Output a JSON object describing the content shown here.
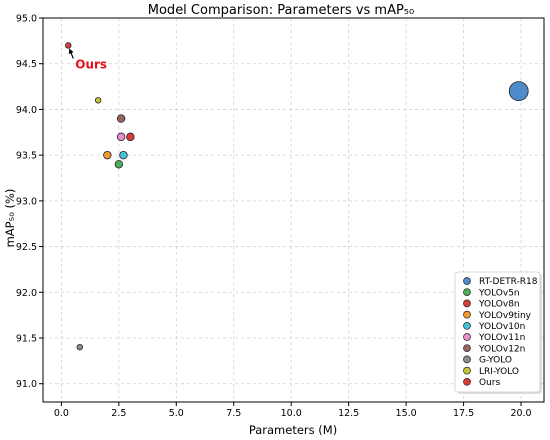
{
  "chart_data": {
    "type": "scatter",
    "title": "Model Comparison: Parameters vs mAP₅₀",
    "xlabel": "Parameters (M)",
    "ylabel": "mAP₅₀ (%)",
    "xlim": [
      -0.8,
      21.0
    ],
    "ylim": [
      90.8,
      95.0
    ],
    "xticks": [
      0.0,
      2.5,
      5.0,
      7.5,
      10.0,
      12.5,
      15.0,
      17.5,
      20.0
    ],
    "xtick_labels": [
      "0.0",
      "2.5",
      "5.0",
      "7.5",
      "10.0",
      "12.5",
      "15.0",
      "17.5",
      "20.0"
    ],
    "yticks": [
      91.0,
      91.5,
      92.0,
      92.5,
      93.0,
      93.5,
      94.0,
      94.5,
      95.0
    ],
    "ytick_labels": [
      "91.0",
      "91.5",
      "92.0",
      "92.5",
      "93.0",
      "93.5",
      "94.0",
      "94.5",
      "95.0"
    ],
    "grid": true,
    "legend_position": "lower-right",
    "series": [
      {
        "name": "RT-DETR-R18",
        "x": 19.9,
        "y": 94.2,
        "color": "#3b7fc4",
        "size": "large"
      },
      {
        "name": "YOLOv5n",
        "x": 2.5,
        "y": 93.4,
        "color": "#3aa547",
        "size": "small"
      },
      {
        "name": "YOLOv8n",
        "x": 3.0,
        "y": 93.7,
        "color": "#d62728",
        "size": "small"
      },
      {
        "name": "YOLOv9tiny",
        "x": 2.0,
        "y": 93.5,
        "color": "#f28e1c",
        "size": "small"
      },
      {
        "name": "YOLOv10n",
        "x": 2.7,
        "y": 93.5,
        "color": "#2fbfcf",
        "size": "small"
      },
      {
        "name": "YOLOv11n",
        "x": 2.6,
        "y": 93.7,
        "color": "#e983c5",
        "size": "small"
      },
      {
        "name": "YOLOv12n",
        "x": 2.6,
        "y": 93.9,
        "color": "#8c564b",
        "size": "small"
      },
      {
        "name": "G-YOLO",
        "x": 0.8,
        "y": 91.4,
        "color": "#7f7f7f",
        "size": "tiny"
      },
      {
        "name": "LRI-YOLO",
        "x": 1.6,
        "y": 94.1,
        "color": "#bcbd22",
        "size": "tiny"
      },
      {
        "name": "Ours",
        "x": 0.3,
        "y": 94.7,
        "color": "#d62728",
        "size": "tiny"
      }
    ],
    "annotation": {
      "text": "Ours",
      "color": "#e8101a",
      "arrow_to": [
        0.3,
        94.7
      ]
    }
  }
}
